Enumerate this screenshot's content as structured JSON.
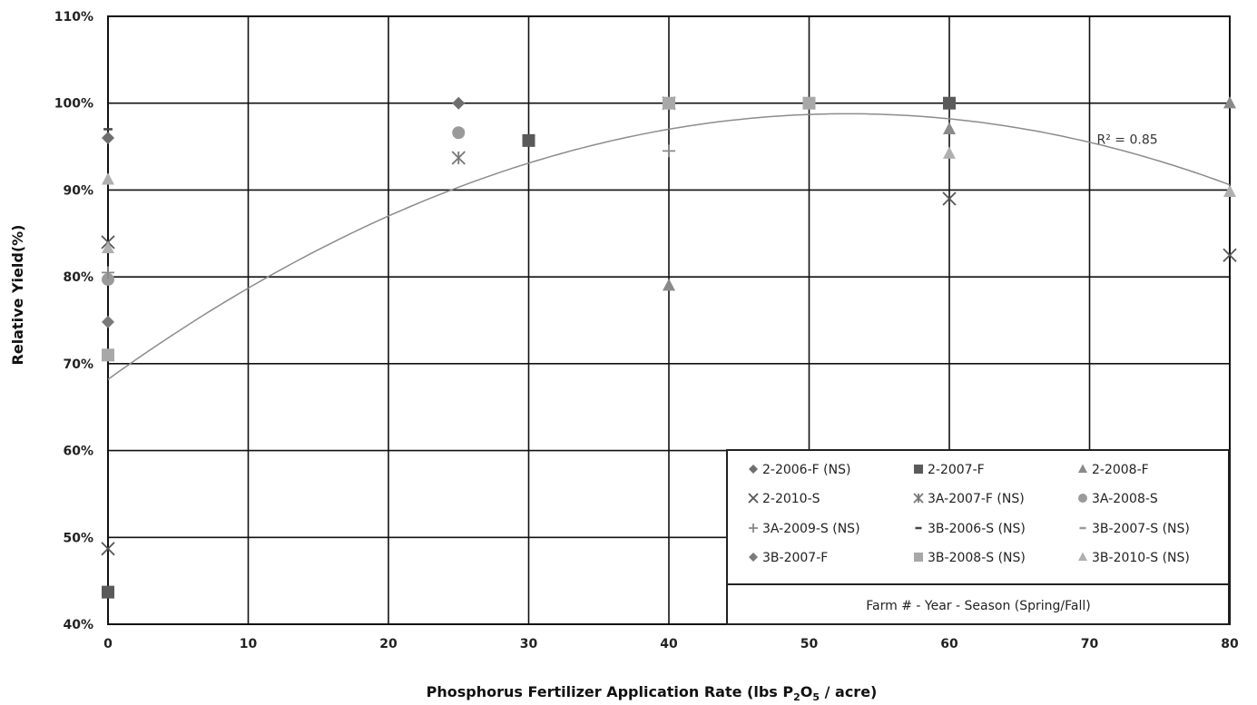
{
  "chart_data": {
    "type": "scatter",
    "xlabel": "Phosphorus Fertilizer Application Rate (lbs P2O5 / acre)",
    "xlabel_parts": {
      "prefix": "Phosphorus Fertilizer Application Rate (lbs P",
      "sub1": "2",
      "mid": "O",
      "sub2": "5",
      "suffix": " / acre)"
    },
    "ylabel": "Relative Yield(%)",
    "xlim": [
      0,
      80
    ],
    "ylim": [
      40,
      110
    ],
    "x_ticks": [
      0,
      10,
      20,
      30,
      40,
      50,
      60,
      70,
      80
    ],
    "y_ticks": [
      40,
      50,
      60,
      70,
      80,
      90,
      100,
      110
    ],
    "y_tick_labels": [
      "40%",
      "50%",
      "60%",
      "70%",
      "80%",
      "90%",
      "100%",
      "110%"
    ],
    "grid": true,
    "legend_position": "bottom-right",
    "legend_caption": "Farm # - Year - Season (Spring/Fall)",
    "series": [
      {
        "name": "2-2006-F (NS)",
        "marker": "diamond",
        "color": "#6e6e6e",
        "points": [
          [
            0,
            96
          ],
          [
            25,
            100
          ]
        ]
      },
      {
        "name": "2-2007-F",
        "marker": "square",
        "color": "#5a5a5a",
        "points": [
          [
            0,
            43.7
          ],
          [
            30,
            95.7
          ],
          [
            60,
            100
          ]
        ]
      },
      {
        "name": "2-2008-F",
        "marker": "triangle",
        "color": "#8a8a8a",
        "points": [
          [
            40,
            79
          ],
          [
            60,
            97
          ],
          [
            80,
            100
          ]
        ]
      },
      {
        "name": "2-2010-S",
        "marker": "x",
        "color": "#555555",
        "points": [
          [
            0,
            48.7
          ],
          [
            0,
            84
          ],
          [
            60,
            89
          ],
          [
            80,
            82.5
          ]
        ]
      },
      {
        "name": "3A-2007-F (NS)",
        "marker": "star",
        "color": "#777777",
        "points": [
          [
            25,
            93.7
          ],
          [
            40,
            100
          ]
        ]
      },
      {
        "name": "3A-2008-S",
        "marker": "circle",
        "color": "#9a9a9a",
        "points": [
          [
            0,
            79.7
          ],
          [
            25,
            96.6
          ]
        ]
      },
      {
        "name": "3A-2009-S (NS)",
        "marker": "plus",
        "color": "#888888",
        "points": [
          [
            40,
            94.5
          ],
          [
            0,
            80.5
          ]
        ]
      },
      {
        "name": "3B-2006-S (NS)",
        "marker": "dash",
        "color": "#444444",
        "points": [
          [
            0,
            97
          ]
        ]
      },
      {
        "name": "3B-2007-S (NS)",
        "marker": "dash",
        "color": "#999999",
        "points": [
          [
            40,
            100
          ]
        ]
      },
      {
        "name": "3B-2007-F",
        "marker": "diamond",
        "color": "#7a7a7a",
        "points": [
          [
            0,
            74.8
          ]
        ]
      },
      {
        "name": "3B-2008-S (NS)",
        "marker": "square",
        "color": "#a8a8a8",
        "points": [
          [
            0,
            71
          ],
          [
            40,
            100
          ],
          [
            50,
            100
          ]
        ]
      },
      {
        "name": "3B-2010-S (NS)",
        "marker": "triangle",
        "color": "#b0b0b0",
        "points": [
          [
            0,
            83.3
          ],
          [
            0,
            91.2
          ],
          [
            60,
            94.2
          ],
          [
            80,
            89.8
          ]
        ]
      }
    ],
    "trendline": {
      "type": "quadratic",
      "coefficients": [
        68.2,
        1.16,
        -0.011
      ],
      "color": "#8c8c8c",
      "label": "R² = 0.85",
      "label_at": [
        70,
        95.3
      ]
    }
  }
}
